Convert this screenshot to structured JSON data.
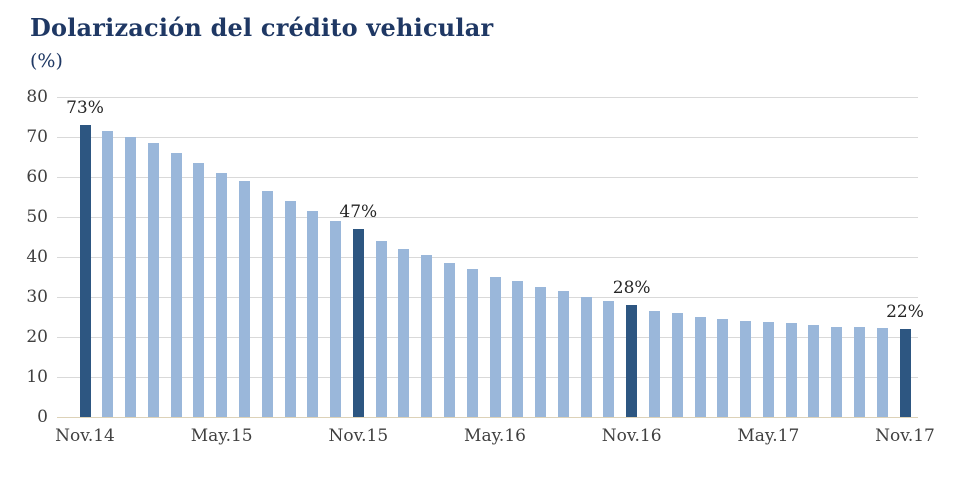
{
  "title": "Dolarización del crédito vehicular",
  "subtitle": "(%)",
  "colors": {
    "title_text": "#1f3864",
    "axis_text": "#404040",
    "annotation_text": "#262626",
    "gridline": "#d9d9d9",
    "axis_line": "#ddd2b8",
    "bar_light": "#9ab7da",
    "bar_dark": "#2d5681"
  },
  "chart_data": {
    "type": "bar",
    "title": "Dolarización del crédito vehicular",
    "ylabel": "(%)",
    "xlabel": "",
    "ylim": [
      0,
      80
    ],
    "y_ticks": [
      0,
      10,
      20,
      30,
      40,
      50,
      60,
      70,
      80
    ],
    "grid": "horizontal",
    "legend": "none",
    "x_tick_labels": [
      "Nov.14",
      "May.15",
      "Nov.15",
      "May.16",
      "Nov.16",
      "May.17",
      "Nov.17"
    ],
    "x_ticks": [
      {
        "index": 0,
        "label": "Nov.14"
      },
      {
        "index": 6,
        "label": "May.15"
      },
      {
        "index": 12,
        "label": "Nov.15"
      },
      {
        "index": 18,
        "label": "May.16"
      },
      {
        "index": 24,
        "label": "Nov.16"
      },
      {
        "index": 30,
        "label": "May.17"
      },
      {
        "index": 36,
        "label": "Nov.17"
      }
    ],
    "values": [
      73,
      71.5,
      70,
      68.5,
      66,
      63.5,
      61,
      59,
      56.5,
      54,
      51.5,
      49,
      47,
      44,
      42,
      40.5,
      38.5,
      37,
      35,
      34,
      32.5,
      31.5,
      30,
      29,
      28,
      26.5,
      26,
      25,
      24.5,
      24,
      23.7,
      23.4,
      23,
      22.6,
      22.4,
      22.2,
      22
    ],
    "highlight_indices": [
      0,
      12,
      24,
      36
    ],
    "annotations": [
      {
        "index": 0,
        "label": "73%"
      },
      {
        "index": 12,
        "label": "47%"
      },
      {
        "index": 24,
        "label": "28%"
      },
      {
        "index": 36,
        "label": "22%"
      }
    ]
  }
}
